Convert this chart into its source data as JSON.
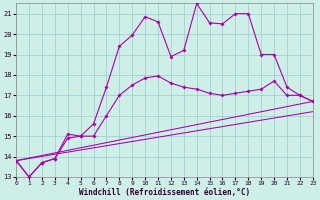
{
  "xlabel": "Windchill (Refroidissement éolien,°C)",
  "xlim": [
    0,
    23
  ],
  "ylim": [
    13,
    21.5
  ],
  "xticks": [
    0,
    1,
    2,
    3,
    4,
    5,
    6,
    7,
    8,
    9,
    10,
    11,
    12,
    13,
    14,
    15,
    16,
    17,
    18,
    19,
    20,
    21,
    22,
    23
  ],
  "yticks": [
    13,
    14,
    15,
    16,
    17,
    18,
    19,
    20,
    21
  ],
  "bg_color": "#ceeee8",
  "line_color": "#aa00aa",
  "grid_color": "#99cccc",
  "curve1_x": [
    0,
    1,
    2,
    3,
    4,
    5,
    6,
    7,
    8,
    9,
    10,
    11,
    12,
    13,
    14,
    15,
    16,
    17,
    18,
    19,
    20,
    21,
    22,
    23
  ],
  "curve1_y": [
    13.8,
    13.0,
    13.7,
    13.9,
    15.1,
    15.0,
    15.6,
    17.4,
    19.4,
    19.95,
    20.85,
    20.6,
    18.9,
    19.2,
    21.5,
    20.55,
    20.5,
    21.0,
    21.0,
    19.0,
    19.0,
    17.4,
    17.0,
    16.7
  ],
  "curve2_x": [
    0,
    1,
    2,
    3,
    4,
    5,
    6,
    7,
    8,
    9,
    10,
    11,
    12,
    13,
    14,
    15,
    16,
    17,
    18,
    19,
    20,
    21,
    22,
    23
  ],
  "curve2_y": [
    13.8,
    13.0,
    13.7,
    13.9,
    14.9,
    15.0,
    15.0,
    16.0,
    17.0,
    17.5,
    17.85,
    17.95,
    17.6,
    17.4,
    17.3,
    17.1,
    17.0,
    17.1,
    17.2,
    17.3,
    17.7,
    17.0,
    17.0,
    16.7
  ],
  "line3_x": [
    0,
    23
  ],
  "line3_y": [
    13.8,
    16.7
  ],
  "line4_x": [
    0,
    23
  ],
  "line4_y": [
    13.8,
    16.2
  ]
}
